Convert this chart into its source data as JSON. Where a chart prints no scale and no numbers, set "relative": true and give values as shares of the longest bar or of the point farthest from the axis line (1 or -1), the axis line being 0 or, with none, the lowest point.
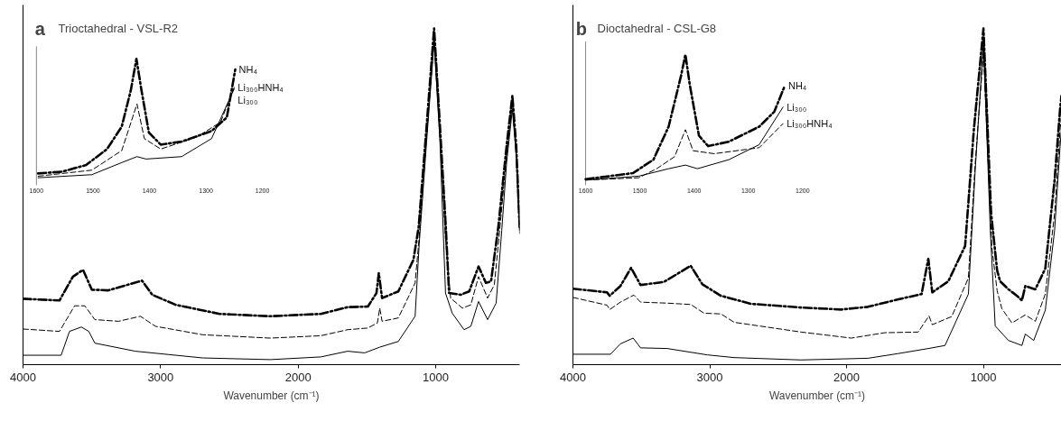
{
  "chart_data": [
    {
      "type": "line",
      "title": "Trioctahedral - VSL-R2",
      "annotations": [
        "a"
      ],
      "xlabel": "Wavenumber (cm⁻¹)",
      "relative": true,
      "xlim": [
        4000,
        390
      ],
      "xticks": [
        4000,
        3000,
        2000,
        1000
      ],
      "grid": false,
      "series": [
        {
          "color": "#000000",
          "line_style": "dashdot",
          "x": [
            4000,
            3735,
            3637,
            3564,
            3500,
            3380,
            3135,
            3061,
            2890,
            2571,
            2203,
            1836,
            1640,
            1493,
            1431,
            1414,
            1390,
            1272,
            1162,
            1124,
            1067,
            1012,
            969,
            927,
            903,
            819,
            757,
            689,
            635,
            598,
            545,
            485,
            443,
            415,
            390
          ],
          "values": [
            0.196,
            0.191,
            0.262,
            0.282,
            0.223,
            0.221,
            0.25,
            0.208,
            0.178,
            0.151,
            0.144,
            0.151,
            0.171,
            0.173,
            0.213,
            0.272,
            0.198,
            0.218,
            0.312,
            0.41,
            0.706,
            1.0,
            0.706,
            0.41,
            0.213,
            0.208,
            0.218,
            0.292,
            0.243,
            0.248,
            0.41,
            0.65,
            0.8,
            0.65,
            0.41
          ]
        },
        {
          "color": "#000000",
          "line_style": "dashed",
          "x": [
            4000,
            3735,
            3625,
            3551,
            3478,
            3306,
            3147,
            3037,
            2939,
            2694,
            2203,
            1836,
            1640,
            1493,
            1424,
            1407,
            1390,
            1272,
            1150,
            1120,
            1067,
            1012,
            969,
            930,
            892,
            806,
            745,
            689,
            623,
            574,
            540,
            485,
            443,
            415,
            390
          ],
          "values": [
            0.106,
            0.099,
            0.175,
            0.175,
            0.134,
            0.129,
            0.144,
            0.114,
            0.107,
            0.089,
            0.079,
            0.086,
            0.104,
            0.109,
            0.124,
            0.168,
            0.129,
            0.139,
            0.243,
            0.38,
            0.68,
            0.97,
            0.68,
            0.38,
            0.198,
            0.168,
            0.178,
            0.262,
            0.198,
            0.238,
            0.38,
            0.62,
            0.78,
            0.63,
            0.4
          ]
        },
        {
          "color": "#000000",
          "line_style": "solid",
          "x": [
            4000,
            3723,
            3662,
            3576,
            3522,
            3478,
            3184,
            2939,
            2694,
            2203,
            1836,
            1640,
            1517,
            1407,
            1272,
            1150,
            1120,
            1067,
            1012,
            969,
            929,
            880,
            794,
            745,
            689,
            623,
            561,
            520,
            485,
            443,
            415,
            390
          ],
          "values": [
            0.028,
            0.028,
            0.099,
            0.112,
            0.099,
            0.064,
            0.04,
            0.03,
            0.02,
            0.015,
            0.023,
            0.04,
            0.035,
            0.052,
            0.069,
            0.144,
            0.36,
            0.66,
            0.96,
            0.66,
            0.213,
            0.153,
            0.104,
            0.114,
            0.188,
            0.134,
            0.183,
            0.4,
            0.6,
            0.76,
            0.62,
            0.39
          ]
        }
      ]
    },
    {
      "type": "line",
      "relative": true,
      "xlim": [
        1600,
        1200
      ],
      "xticks": [
        1600,
        1500,
        1400,
        1300,
        1200
      ],
      "tick_labels": "x",
      "series": [
        {
          "name": "NH₄",
          "color": "#000000",
          "line_style": "dashdot",
          "x": [
            1597,
            1554,
            1512,
            1475,
            1449,
            1433,
            1423,
            1414,
            1401,
            1380,
            1343,
            1290,
            1263,
            1248
          ],
          "values": [
            0.093,
            0.107,
            0.16,
            0.286,
            0.464,
            0.75,
            1.0,
            0.75,
            0.417,
            0.321,
            0.345,
            0.429,
            0.536,
            0.917
          ]
        },
        {
          "name": "Li₃₀₀HNH₄",
          "color": "#000000",
          "line_style": "dashed",
          "x": [
            1597,
            1502,
            1449,
            1422,
            1409,
            1380,
            1316,
            1274,
            1250
          ],
          "values": [
            0.071,
            0.119,
            0.274,
            0.643,
            0.369,
            0.286,
            0.381,
            0.5,
            0.774
          ]
        },
        {
          "name": "Li₃₀₀",
          "color": "#000000",
          "line_style": "solid",
          "x": [
            1597,
            1502,
            1449,
            1422,
            1406,
            1343,
            1290,
            1250
          ],
          "values": [
            0.059,
            0.083,
            0.179,
            0.226,
            0.207,
            0.226,
            0.369,
            0.762
          ]
        }
      ]
    },
    {
      "type": "line",
      "title": "Dioctahedral - CSL-G8",
      "annotations": [
        "b"
      ],
      "xlabel": "Wavenumber (cm⁻¹)",
      "relative": true,
      "xlim": [
        4000,
        430
      ],
      "xticks": [
        4000,
        3000,
        2000,
        1000
      ],
      "grid": false,
      "series": [
        {
          "color": "#000000",
          "line_style": "dashdot",
          "x": [
            4000,
            3751,
            3731,
            3653,
            3575,
            3506,
            3335,
            3139,
            3054,
            2919,
            2699,
            2333,
            2039,
            1844,
            1636,
            1452,
            1403,
            1374,
            1257,
            1134,
            1070,
            1000,
            944,
            900,
            878,
            817,
            756,
            719,
            694,
            621,
            548,
            480,
            440,
            430
          ],
          "values": [
            0.226,
            0.215,
            0.205,
            0.234,
            0.288,
            0.237,
            0.246,
            0.294,
            0.239,
            0.205,
            0.181,
            0.17,
            0.164,
            0.172,
            0.193,
            0.21,
            0.315,
            0.215,
            0.248,
            0.353,
            0.7,
            1.0,
            0.45,
            0.28,
            0.248,
            0.224,
            0.205,
            0.191,
            0.234,
            0.224,
            0.286,
            0.55,
            0.76,
            0.8
          ]
        },
        {
          "color": "#000000",
          "line_style": "dashed",
          "x": [
            4000,
            3751,
            3731,
            3653,
            3555,
            3506,
            3311,
            3139,
            3042,
            2919,
            2822,
            2333,
            1966,
            1721,
            1477,
            1398,
            1374,
            1232,
            1110,
            1060,
            1000,
            939,
            900,
            866,
            792,
            694,
            621,
            548,
            480,
            440,
            430
          ],
          "values": [
            0.2,
            0.177,
            0.164,
            0.186,
            0.207,
            0.186,
            0.183,
            0.179,
            0.153,
            0.151,
            0.126,
            0.097,
            0.079,
            0.095,
            0.097,
            0.145,
            0.119,
            0.143,
            0.258,
            0.6,
            0.93,
            0.35,
            0.22,
            0.167,
            0.124,
            0.148,
            0.129,
            0.21,
            0.45,
            0.7,
            0.74
          ]
        },
        {
          "color": "#000000",
          "line_style": "solid",
          "x": [
            4000,
            3726,
            3653,
            3560,
            3506,
            3311,
            3017,
            2822,
            2333,
            1844,
            1623,
            1403,
            1281,
            1110,
            1060,
            1000,
            950,
            914,
            817,
            719,
            694,
            633,
            548,
            480,
            440,
            430
          ],
          "values": [
            0.031,
            0.031,
            0.062,
            0.079,
            0.05,
            0.048,
            0.029,
            0.021,
            0.014,
            0.019,
            0.033,
            0.048,
            0.057,
            0.21,
            0.58,
            0.96,
            0.4,
            0.115,
            0.072,
            0.057,
            0.091,
            0.072,
            0.162,
            0.4,
            0.65,
            0.7
          ]
        }
      ]
    },
    {
      "type": "line",
      "relative": true,
      "xlim": [
        1600,
        1200
      ],
      "xticks": [
        1600,
        1500,
        1400,
        1300,
        1200
      ],
      "tick_labels": "x",
      "series": [
        {
          "name": "NH₄",
          "color": "#000000",
          "line_style": "dashdot",
          "x": [
            1600,
            1513,
            1475,
            1447,
            1424,
            1416,
            1408,
            1391,
            1374,
            1336,
            1280,
            1252,
            1233
          ],
          "values": [
            0.046,
            0.092,
            0.195,
            0.448,
            0.839,
            1.0,
            0.77,
            0.379,
            0.299,
            0.333,
            0.448,
            0.563,
            0.759
          ]
        },
        {
          "name": "Li₃₀₀",
          "color": "#000000",
          "line_style": "solid",
          "x": [
            1600,
            1502,
            1447,
            1416,
            1394,
            1336,
            1280,
            1236
          ],
          "values": [
            0.039,
            0.069,
            0.126,
            0.154,
            0.126,
            0.195,
            0.31,
            0.598
          ]
        },
        {
          "name": "Li₃₀₀HNH₄",
          "color": "#000000",
          "line_style": "dashed",
          "x": [
            1600,
            1502,
            1469,
            1436,
            1416,
            1402,
            1363,
            1280,
            1236
          ],
          "values": [
            0.039,
            0.057,
            0.126,
            0.218,
            0.425,
            0.264,
            0.241,
            0.287,
            0.471
          ]
        }
      ]
    }
  ]
}
